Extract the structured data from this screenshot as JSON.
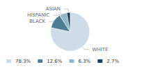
{
  "chart_data": {
    "type": "pie",
    "categories": [
      "WHITE",
      "BLACK",
      "HISPANIC",
      "ASIAN"
    ],
    "values": [
      78.3,
      12.6,
      6.3,
      2.7
    ],
    "value_labels": [
      "78.3%",
      "12.6%",
      "6.3%",
      "2.7%"
    ],
    "colors": [
      "#cddce8",
      "#4e7d96",
      "#92b8cc",
      "#1e3d58"
    ],
    "legend": "lower left"
  }
}
